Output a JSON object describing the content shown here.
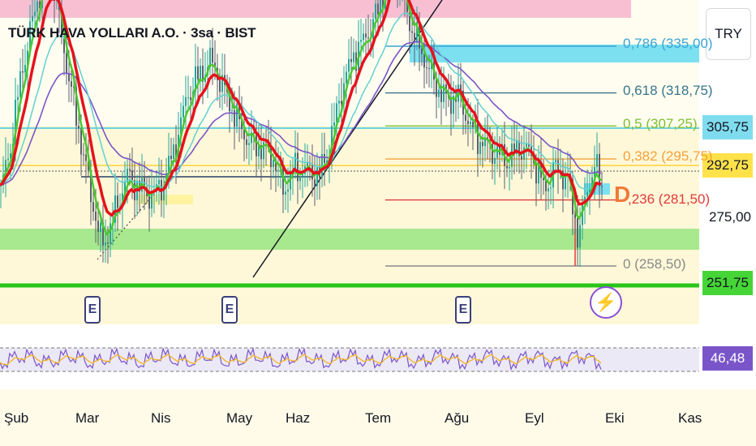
{
  "header": {
    "title": "TÜRK HAVA YOLLARI A.O. · 3sa · BIST"
  },
  "currency_button": {
    "label": "TRY"
  },
  "chart_data": {
    "type": "candlestick",
    "title": "TÜRK HAVA YOLLARI A.O. · 3sa · BIST",
    "x_months": [
      "Şub",
      "Mar",
      "Nis",
      "May",
      "Haz",
      "Tem",
      "Ağu",
      "Eyl",
      "Eki",
      "Kas"
    ],
    "y_ticks": [
      "275,00"
    ],
    "price_labels": {
      "p305": "305,75",
      "p292": "292,75",
      "p251": "251,75"
    },
    "fibonacci": [
      {
        "label": "0,786 (335,00)",
        "value": 335.0,
        "color": "#38a6d6"
      },
      {
        "label": "0,618 (318,75)",
        "value": 318.75,
        "color": "#37758c"
      },
      {
        "label": "0,5 (307,25)",
        "value": 307.25,
        "color": "#7fbf33"
      },
      {
        "label": "0,382 (295,75)",
        "value": 295.75,
        "color": "#f7a13a"
      },
      {
        "label": ",236 (281,50)",
        "value": 281.5,
        "color": "#e03a3a"
      },
      {
        "label": "0 (258,50)",
        "value": 258.5,
        "color": "#8a8a8a"
      }
    ],
    "rsi": {
      "value_label": "46,48",
      "upper": 70,
      "lower": 30
    },
    "events": [
      "E",
      "E",
      "E"
    ],
    "close_path": [
      [
        0,
        285
      ],
      [
        12,
        300
      ],
      [
        25,
        325
      ],
      [
        40,
        345
      ],
      [
        55,
        362
      ],
      [
        65,
        358
      ],
      [
        75,
        338
      ],
      [
        88,
        318
      ],
      [
        100,
        300
      ],
      [
        112,
        282
      ],
      [
        125,
        265
      ],
      [
        140,
        276
      ],
      [
        155,
        290
      ],
      [
        170,
        286
      ],
      [
        185,
        283
      ],
      [
        200,
        287
      ],
      [
        215,
        300
      ],
      [
        230,
        318
      ],
      [
        245,
        325
      ],
      [
        260,
        330
      ],
      [
        275,
        320
      ],
      [
        290,
        310
      ],
      [
        305,
        302
      ],
      [
        320,
        300
      ],
      [
        335,
        297
      ],
      [
        348,
        285
      ],
      [
        362,
        292
      ],
      [
        378,
        292
      ],
      [
        393,
        290
      ],
      [
        405,
        300
      ],
      [
        420,
        320
      ],
      [
        435,
        332
      ],
      [
        450,
        338
      ],
      [
        465,
        347
      ],
      [
        480,
        362
      ],
      [
        492,
        358
      ],
      [
        505,
        342
      ],
      [
        520,
        332
      ],
      [
        535,
        322
      ],
      [
        550,
        316
      ],
      [
        565,
        318
      ],
      [
        580,
        306
      ],
      [
        595,
        301
      ],
      [
        610,
        298
      ],
      [
        625,
        295
      ],
      [
        640,
        300
      ],
      [
        655,
        297
      ],
      [
        670,
        285
      ],
      [
        685,
        293
      ],
      [
        700,
        288
      ],
      [
        712,
        268
      ],
      [
        722,
        285
      ],
      [
        732,
        293
      ],
      [
        742,
        286
      ]
    ]
  },
  "colors": {
    "ema_red": "#e5121d",
    "ema_green": "#4cc72f",
    "ema_cyan": "#63d0d2",
    "ema_purple": "#7a55c9",
    "rsi_purple": "#7a55c9",
    "green_band": "#a8e88e",
    "pink_band": "#f8bfd3",
    "cyan_band": "#7ce0f0"
  }
}
